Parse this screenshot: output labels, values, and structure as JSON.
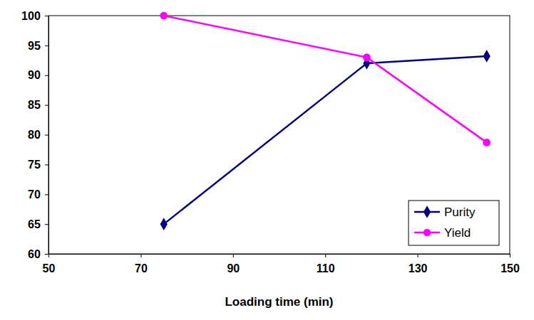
{
  "chart_data": {
    "type": "line",
    "x_label": "Loading time (min)",
    "x": [
      75,
      119,
      145
    ],
    "series": [
      {
        "name": "Purity",
        "color": "#000080",
        "marker": "diamond",
        "values": [
          65,
          92,
          93.2
        ]
      },
      {
        "name": "Yield",
        "color": "#ff00ff",
        "marker": "circle",
        "values": [
          100,
          93,
          78.7
        ]
      }
    ],
    "xlim": [
      50,
      150
    ],
    "xticks": [
      50,
      70,
      90,
      110,
      130,
      150
    ],
    "ylim": [
      60,
      100
    ],
    "yticks": [
      60,
      65,
      70,
      75,
      80,
      85,
      90,
      95,
      100
    ],
    "grid": false,
    "legend": "bottom-right"
  }
}
